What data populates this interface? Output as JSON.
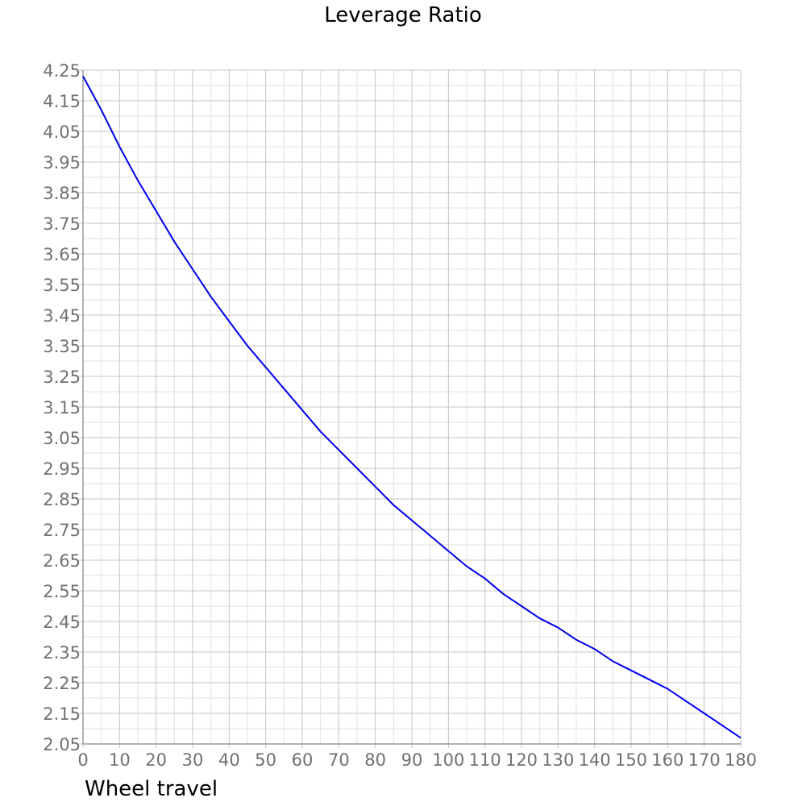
{
  "chart_data": {
    "type": "line",
    "title": "Leverage Ratio",
    "xlabel": "Wheel travel",
    "ylabel": "",
    "xlim": [
      0,
      180
    ],
    "ylim": [
      2.05,
      4.25
    ],
    "x_ticks": [
      "0",
      "10",
      "20",
      "30",
      "40",
      "50",
      "60",
      "70",
      "80",
      "90",
      "100",
      "110",
      "120",
      "130",
      "140",
      "150",
      "160",
      "170",
      "180"
    ],
    "y_ticks": [
      "4.25",
      "4.15",
      "4.05",
      "3.95",
      "3.85",
      "3.75",
      "3.65",
      "3.55",
      "3.45",
      "3.35",
      "3.25",
      "3.15",
      "3.05",
      "2.95",
      "2.85",
      "2.75",
      "2.65",
      "2.55",
      "2.45",
      "2.35",
      "2.25",
      "2.15",
      "2.05"
    ],
    "grid": true,
    "series": [
      {
        "color": "#0000ee",
        "x": [
          0,
          5,
          10,
          15,
          20,
          25,
          30,
          35,
          40,
          45,
          50,
          55,
          60,
          65,
          70,
          75,
          80,
          85,
          90,
          95,
          100,
          105,
          110,
          115,
          120,
          125,
          130,
          135,
          140,
          145,
          150,
          155,
          160,
          165,
          170,
          175,
          180
        ],
        "y": [
          4.23,
          4.12,
          4.0,
          3.89,
          3.79,
          3.69,
          3.6,
          3.51,
          3.43,
          3.35,
          3.28,
          3.21,
          3.14,
          3.07,
          3.01,
          2.95,
          2.89,
          2.83,
          2.78,
          2.73,
          2.68,
          2.63,
          2.59,
          2.54,
          2.5,
          2.46,
          2.43,
          2.39,
          2.36,
          2.32,
          2.29,
          2.26,
          2.23,
          2.19,
          2.15,
          2.11,
          2.07
        ]
      }
    ]
  }
}
